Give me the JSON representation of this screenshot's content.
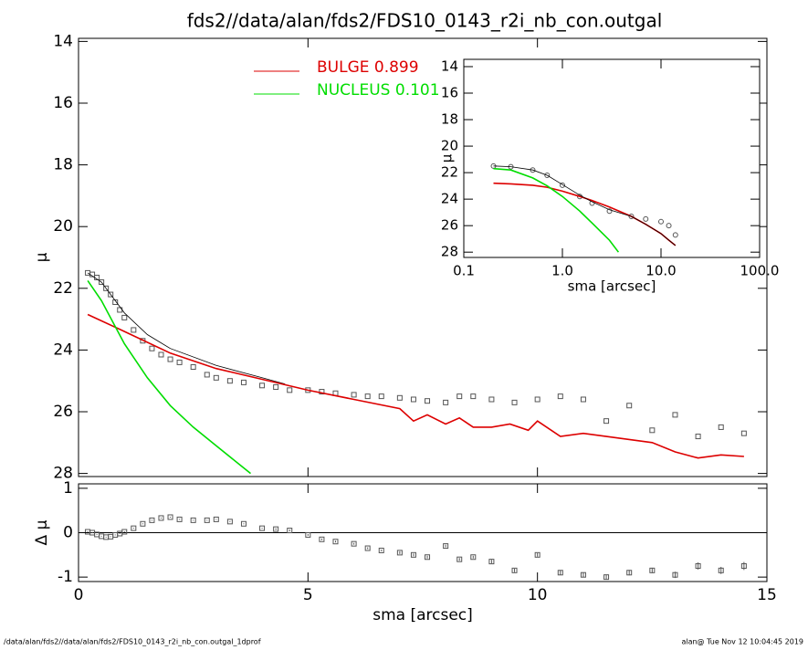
{
  "footer_left": "/data/alan/fds2//data/alan/fds2/FDS10_0143_r2i_nb_con.outgal_1dprof",
  "footer_right": "alan@  Tue Nov 12 10:04:45 2019",
  "chart_data": [
    {
      "type": "line",
      "title": "fds2//data/alan/fds2/FDS10_0143_r2i_nb_con.outgal",
      "y_label": "μ",
      "xlim": [
        0,
        15
      ],
      "ylim": [
        28.1,
        13.9
      ],
      "yticks": [
        14,
        16,
        18,
        20,
        22,
        24,
        26,
        28
      ],
      "series": [
        {
          "mode": "markers",
          "color": "#555555",
          "x": [
            0.2,
            0.3,
            0.4,
            0.5,
            0.6,
            0.7,
            0.8,
            0.9,
            1.0,
            1.2,
            1.4,
            1.6,
            1.8,
            2.0,
            2.2,
            2.5,
            2.8,
            3.0,
            3.3,
            3.6,
            4.0,
            4.3,
            4.6,
            5.0,
            5.3,
            5.6,
            6.0,
            6.3,
            6.6,
            7.0,
            7.3,
            7.6,
            8.0,
            8.3,
            8.6,
            9.0,
            9.5,
            10.0,
            10.5,
            11.0,
            11.5,
            12.0,
            12.5,
            13.0,
            13.5,
            14.0,
            14.5
          ],
          "values": [
            21.5,
            21.55,
            21.65,
            21.8,
            22.0,
            22.2,
            22.45,
            22.7,
            22.95,
            23.35,
            23.7,
            23.95,
            24.15,
            24.3,
            24.4,
            24.55,
            24.8,
            24.9,
            25.0,
            25.05,
            25.15,
            25.2,
            25.3,
            25.3,
            25.35,
            25.4,
            25.45,
            25.5,
            25.5,
            25.55,
            25.6,
            25.65,
            25.7,
            25.5,
            25.5,
            25.6,
            25.7,
            25.6,
            25.5,
            25.6,
            26.3,
            25.8,
            26.6,
            26.1,
            26.8,
            26.5,
            26.7
          ]
        },
        {
          "mode": "lines",
          "color": "#000000",
          "x": [
            0.2,
            0.5,
            1,
            1.5,
            2,
            3,
            4,
            4.5
          ],
          "values": [
            21.5,
            21.8,
            22.8,
            23.5,
            23.95,
            24.5,
            24.9,
            25.1
          ]
        },
        {
          "mode": "lines",
          "name": "BULGE  0.899",
          "color": "#dd0000",
          "x": [
            0.2,
            1,
            2,
            3,
            4,
            5,
            6,
            7,
            7.3,
            7.6,
            8,
            8.3,
            8.6,
            9,
            9.4,
            9.8,
            10,
            10.5,
            11,
            11.5,
            12,
            12.5,
            13,
            13.5,
            14,
            14.5
          ],
          "values": [
            22.85,
            23.4,
            24.1,
            24.6,
            24.95,
            25.3,
            25.6,
            25.9,
            26.3,
            26.1,
            26.4,
            26.2,
            26.5,
            26.5,
            26.4,
            26.6,
            26.3,
            26.8,
            26.7,
            26.8,
            26.9,
            27.0,
            27.3,
            27.5,
            27.4,
            27.45
          ]
        },
        {
          "mode": "lines",
          "name": "NUCLEUS  0.101",
          "color": "#00dd00",
          "x": [
            0.2,
            0.5,
            1,
            1.5,
            2,
            2.5,
            3,
            3.5,
            3.75
          ],
          "values": [
            21.75,
            22.4,
            23.8,
            24.9,
            25.8,
            26.5,
            27.1,
            27.7,
            28.0
          ]
        }
      ]
    },
    {
      "type": "errorbar",
      "x_label": "sma [arcsec]",
      "y_label": "Δ μ",
      "xlim": [
        0,
        15
      ],
      "ylim": [
        -1.1,
        1.1
      ],
      "xticks": [
        0,
        5,
        10,
        15
      ],
      "yticks": [
        1,
        0,
        -1
      ],
      "color": "#555555",
      "x": [
        0.2,
        0.3,
        0.4,
        0.5,
        0.6,
        0.7,
        0.8,
        0.9,
        1.0,
        1.2,
        1.4,
        1.6,
        1.8,
        2.0,
        2.2,
        2.5,
        2.8,
        3.0,
        3.3,
        3.6,
        4.0,
        4.3,
        4.6,
        5.0,
        5.3,
        5.6,
        6.0,
        6.3,
        6.6,
        7.0,
        7.3,
        7.6,
        8.0,
        8.3,
        8.6,
        9.0,
        9.5,
        10.0,
        10.5,
        11.0,
        11.5,
        12.0,
        12.5,
        13.0,
        13.5,
        14.0,
        14.5
      ],
      "values": [
        0.02,
        0.0,
        -0.04,
        -0.08,
        -0.1,
        -0.09,
        -0.05,
        -0.02,
        0.02,
        0.1,
        0.2,
        0.28,
        0.33,
        0.35,
        0.3,
        0.28,
        0.28,
        0.3,
        0.25,
        0.2,
        0.1,
        0.08,
        0.05,
        -0.05,
        -0.15,
        -0.2,
        -0.25,
        -0.35,
        -0.4,
        -0.45,
        -0.5,
        -0.55,
        -0.3,
        -0.6,
        -0.55,
        -0.65,
        -0.85,
        -0.5,
        -0.9,
        -0.95,
        -1.0,
        -0.9,
        -0.85,
        -0.95,
        -0.75,
        -0.85,
        -0.75
      ],
      "errors": [
        0.01,
        0.01,
        0.01,
        0.01,
        0.01,
        0.01,
        0.01,
        0.01,
        0.01,
        0.01,
        0.01,
        0.01,
        0.01,
        0.01,
        0.01,
        0.01,
        0.01,
        0.01,
        0.01,
        0.01,
        0.01,
        0.02,
        0.02,
        0.02,
        0.02,
        0.02,
        0.02,
        0.02,
        0.02,
        0.03,
        0.03,
        0.03,
        0.03,
        0.03,
        0.03,
        0.04,
        0.04,
        0.04,
        0.05,
        0.05,
        0.05,
        0.06,
        0.06,
        0.07,
        0.08,
        0.08,
        0.09
      ]
    },
    {
      "type": "line",
      "x_label": "sma [arcsec]",
      "y_label": "μ",
      "xscale": "log",
      "xlim": [
        0.1,
        100
      ],
      "ylim": [
        28.4,
        13.45
      ],
      "xticks": [
        0.1,
        {
          "value": 1,
          "label": "1.0"
        },
        {
          "value": 10,
          "label": "10.0"
        },
        {
          "value": 100,
          "label": "100.0"
        }
      ],
      "yticks": [
        14,
        16,
        18,
        20,
        22,
        24,
        26,
        28
      ],
      "series": [
        {
          "mode": "markers",
          "color": "#555555",
          "x": [
            0.2,
            0.3,
            0.5,
            0.7,
            1,
            1.5,
            2,
            3,
            5,
            7,
            10,
            12,
            14
          ],
          "values": [
            21.5,
            21.55,
            21.8,
            22.2,
            22.95,
            23.8,
            24.3,
            24.9,
            25.3,
            25.5,
            25.7,
            26.0,
            26.7
          ]
        },
        {
          "mode": "lines",
          "color": "#dd0000",
          "x": [
            0.2,
            0.3,
            0.5,
            0.7,
            1,
            1.5,
            2,
            3,
            5,
            7,
            10,
            12,
            14
          ],
          "values": [
            22.8,
            22.85,
            22.95,
            23.1,
            23.4,
            23.8,
            24.1,
            24.6,
            25.3,
            25.9,
            26.6,
            27.1,
            27.5
          ]
        },
        {
          "mode": "lines",
          "color": "#00dd00",
          "x": [
            0.2,
            0.3,
            0.5,
            0.7,
            1,
            1.5,
            2,
            3,
            3.7
          ],
          "values": [
            21.7,
            21.8,
            22.4,
            23.0,
            23.8,
            24.9,
            25.8,
            27.1,
            28.0
          ]
        },
        {
          "mode": "lines",
          "color": "#000000",
          "x": [
            0.2,
            0.3,
            0.5,
            0.7,
            1,
            1.5,
            2,
            3,
            5,
            7,
            10,
            12,
            14
          ],
          "values": [
            21.5,
            21.55,
            21.8,
            22.2,
            22.9,
            23.7,
            24.2,
            24.8,
            25.3,
            25.9,
            26.6,
            27.1,
            27.5
          ]
        }
      ]
    }
  ]
}
